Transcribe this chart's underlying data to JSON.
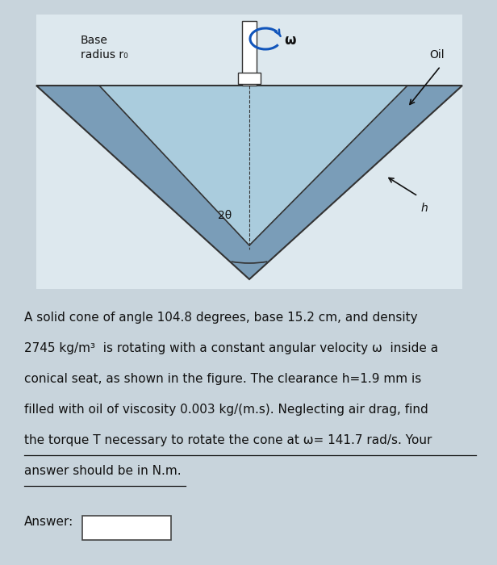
{
  "bg_color": "#c8d4dc",
  "diagram_bg": "#dde8ee",
  "cone_fill": "#aaccdd",
  "cone_edge": "#333333",
  "seat_fill": "#7a9db8",
  "seat_outer_fill": "#8aaac0",
  "title_label1": "Base",
  "title_label2": "radius r₀",
  "oil_label": "Oil",
  "angle_label": "2θ",
  "h_label": "h",
  "omega_label": "ω",
  "problem_lines": [
    "A solid cone of angle 104.8 degrees, base 15.2 cm, and density",
    "2745 kg/m³  is rotating with a constant angular velocity ω  inside a",
    "conical seat, as shown in the figure. The clearance h=1.9 mm is",
    "filled with oil of viscosity 0.003 kg/(m.s). Neglecting air drag, find",
    "the torque T necessary to rotate the cone at ω= 141.7 rad/s. Your",
    "answer should be in N.m."
  ],
  "answer_label": "Answer:",
  "text_color": "#111111",
  "font_size_body": 11.0,
  "font_size_label": 9.5
}
